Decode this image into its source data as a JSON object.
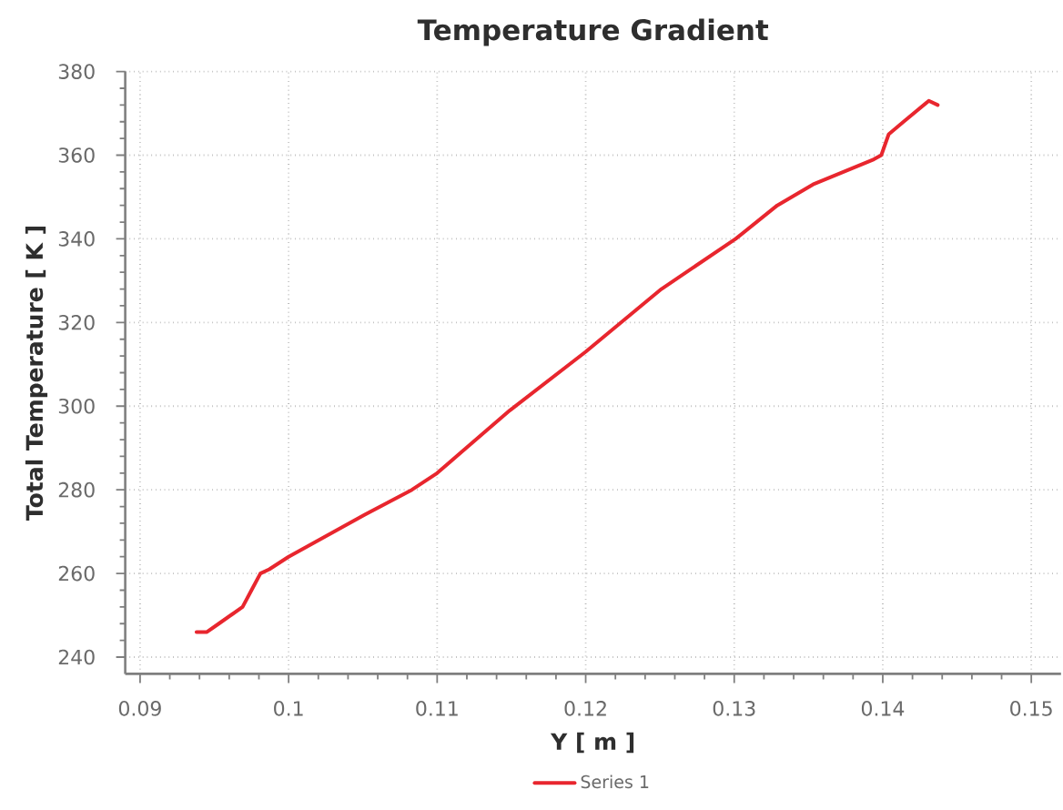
{
  "chart_data": {
    "type": "line",
    "title": "Temperature Gradient",
    "xlabel": "Y [ m ]",
    "ylabel": "Total Temperature [ K ]",
    "x": [
      0.0938,
      0.0945,
      0.0953,
      0.0969,
      0.0975,
      0.0981,
      0.0987,
      0.1,
      0.1051,
      0.1083,
      0.11,
      0.1149,
      0.12,
      0.1251,
      0.1301,
      0.1329,
      0.1353,
      0.1394,
      0.1399,
      0.1404,
      0.1414,
      0.1431,
      0.1437
    ],
    "series": [
      {
        "name": "Series 1",
        "color": "#e8262e",
        "values": [
          246,
          246,
          248,
          252,
          256,
          260,
          261,
          264,
          274,
          280,
          284,
          299,
          313,
          328,
          340,
          348,
          353,
          359,
          360,
          365,
          368,
          373,
          372
        ]
      }
    ],
    "xlim": [
      0.089,
      0.152
    ],
    "xticks": [
      0.09,
      0.1,
      0.11,
      0.12,
      0.13,
      0.14,
      0.15
    ],
    "ylim": [
      236,
      380
    ],
    "yticks": [
      240,
      260,
      280,
      300,
      320,
      340,
      360,
      380
    ],
    "grid": true,
    "legend": "bottom"
  }
}
